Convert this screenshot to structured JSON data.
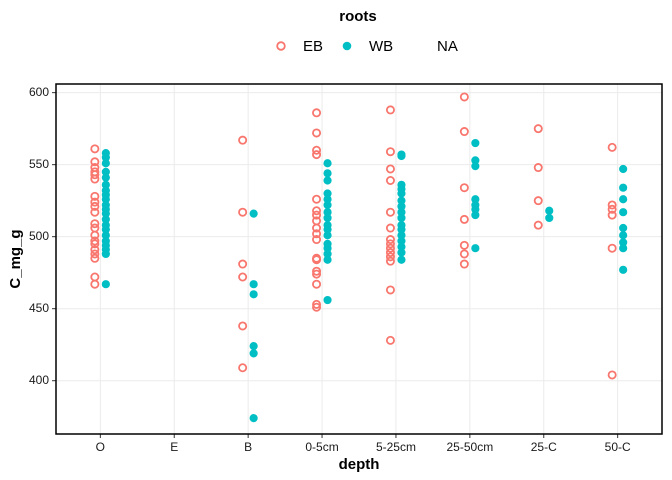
{
  "chart_data": {
    "type": "scatter",
    "x_label": "depth",
    "y_label": "C_mg_g",
    "legend_title": "roots",
    "legend_position": "top",
    "grid": true,
    "categories": [
      "O",
      "E",
      "B",
      "0-5cm",
      "5-25cm",
      "25-50cm",
      "25-C",
      "50-C"
    ],
    "ylim": [
      363,
      606
    ],
    "yticks": [
      400,
      450,
      500,
      550,
      600
    ],
    "series": [
      {
        "name": "EB",
        "color": "#F8766D",
        "filled": false,
        "x": [
          "O",
          "O",
          "O",
          "O",
          "O",
          "O",
          "O",
          "O",
          "O",
          "O",
          "O",
          "O",
          "O",
          "O",
          "O",
          "O",
          "O",
          "O",
          "O",
          "O",
          "B",
          "B",
          "B",
          "B",
          "B",
          "B",
          "0-5cm",
          "0-5cm",
          "0-5cm",
          "0-5cm",
          "0-5cm",
          "0-5cm",
          "0-5cm",
          "0-5cm",
          "0-5cm",
          "0-5cm",
          "0-5cm",
          "0-5cm",
          "0-5cm",
          "0-5cm",
          "0-5cm",
          "0-5cm",
          "0-5cm",
          "0-5cm",
          "5-25cm",
          "5-25cm",
          "5-25cm",
          "5-25cm",
          "5-25cm",
          "5-25cm",
          "5-25cm",
          "5-25cm",
          "5-25cm",
          "5-25cm",
          "5-25cm",
          "5-25cm",
          "5-25cm",
          "5-25cm",
          "25-50cm",
          "25-50cm",
          "25-50cm",
          "25-50cm",
          "25-50cm",
          "25-50cm",
          "25-50cm",
          "25-C",
          "25-C",
          "25-C",
          "25-C",
          "50-C",
          "50-C",
          "50-C",
          "50-C",
          "50-C",
          "50-C"
        ],
        "values": [
          561,
          552,
          548,
          545,
          543,
          540,
          528,
          524,
          521,
          517,
          509,
          506,
          501,
          497,
          495,
          491,
          488,
          485,
          472,
          467,
          567,
          517,
          481,
          472,
          438,
          409,
          586,
          572,
          560,
          557,
          526,
          518,
          515,
          511,
          506,
          502,
          498,
          485,
          484,
          476,
          474,
          467,
          453,
          451,
          588,
          559,
          547,
          539,
          517,
          506,
          498,
          495,
          492,
          489,
          486,
          483,
          463,
          428,
          597,
          573,
          534,
          512,
          494,
          488,
          481,
          575,
          548,
          525,
          508,
          562,
          522,
          519,
          515,
          492,
          404
        ]
      },
      {
        "name": "WB",
        "color": "#00BFC4",
        "filled": true,
        "x": [
          "O",
          "O",
          "O",
          "O",
          "O",
          "O",
          "O",
          "O",
          "O",
          "O",
          "O",
          "O",
          "O",
          "O",
          "O",
          "O",
          "O",
          "O",
          "O",
          "O",
          "O",
          "B",
          "B",
          "B",
          "B",
          "B",
          "B",
          "0-5cm",
          "0-5cm",
          "0-5cm",
          "0-5cm",
          "0-5cm",
          "0-5cm",
          "0-5cm",
          "0-5cm",
          "0-5cm",
          "0-5cm",
          "0-5cm",
          "0-5cm",
          "0-5cm",
          "0-5cm",
          "0-5cm",
          "0-5cm",
          "5-25cm",
          "5-25cm",
          "5-25cm",
          "5-25cm",
          "5-25cm",
          "5-25cm",
          "5-25cm",
          "5-25cm",
          "5-25cm",
          "5-25cm",
          "5-25cm",
          "5-25cm",
          "5-25cm",
          "5-25cm",
          "5-25cm",
          "5-25cm",
          "25-50cm",
          "25-50cm",
          "25-50cm",
          "25-50cm",
          "25-50cm",
          "25-50cm",
          "25-50cm",
          "25-50cm",
          "25-C",
          "25-C",
          "50-C",
          "50-C",
          "50-C",
          "50-C",
          "50-C",
          "50-C",
          "50-C",
          "50-C",
          "50-C"
        ],
        "values": [
          558,
          555,
          551,
          545,
          541,
          536,
          532,
          529,
          526,
          522,
          519,
          516,
          512,
          508,
          505,
          501,
          497,
          494,
          491,
          488,
          467,
          516,
          467,
          460,
          424,
          419,
          374,
          551,
          544,
          539,
          530,
          526,
          522,
          517,
          513,
          508,
          505,
          501,
          495,
          492,
          488,
          484,
          456,
          557,
          556,
          536,
          533,
          530,
          525,
          521,
          517,
          513,
          508,
          505,
          501,
          497,
          493,
          489,
          484,
          565,
          553,
          549,
          526,
          522,
          519,
          515,
          492,
          518,
          513,
          547,
          534,
          526,
          517,
          506,
          501,
          496,
          492,
          477
        ]
      },
      {
        "name": "NA",
        "x": [],
        "values": []
      }
    ]
  }
}
